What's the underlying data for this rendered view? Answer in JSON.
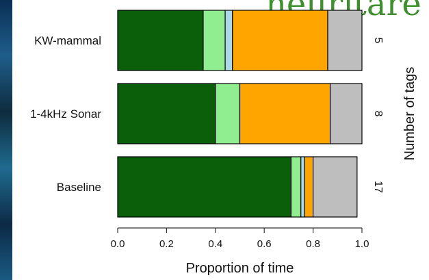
{
  "banner_text": "neuritare",
  "chart_data": {
    "type": "bar",
    "orientation": "horizontal",
    "stacked": true,
    "categories": [
      "KW-mammal",
      "1-4kHz Sonar",
      "Baseline"
    ],
    "right_labels": [
      "5",
      "8",
      "17"
    ],
    "xlabel": "Proportion of time",
    "ylabel_right": "Number of tags",
    "xlim": [
      0,
      1.0
    ],
    "x_ticks": [
      "0.0",
      "0.2",
      "0.4",
      "0.6",
      "0.8",
      "1.0"
    ],
    "grid": false,
    "legend": "none",
    "series": [
      {
        "color": "#0b5f0b",
        "values": [
          0.35,
          0.4,
          0.71
        ]
      },
      {
        "color": "#90ee90",
        "values": [
          0.09,
          0.1,
          0.04
        ]
      },
      {
        "color": "#add8e6",
        "values": [
          0.03,
          0.0,
          0.015
        ]
      },
      {
        "color": "#ffa500",
        "values": [
          0.39,
          0.37,
          0.035
        ]
      },
      {
        "color": "#bebebe",
        "values": [
          0.14,
          0.13,
          0.18
        ]
      }
    ]
  }
}
